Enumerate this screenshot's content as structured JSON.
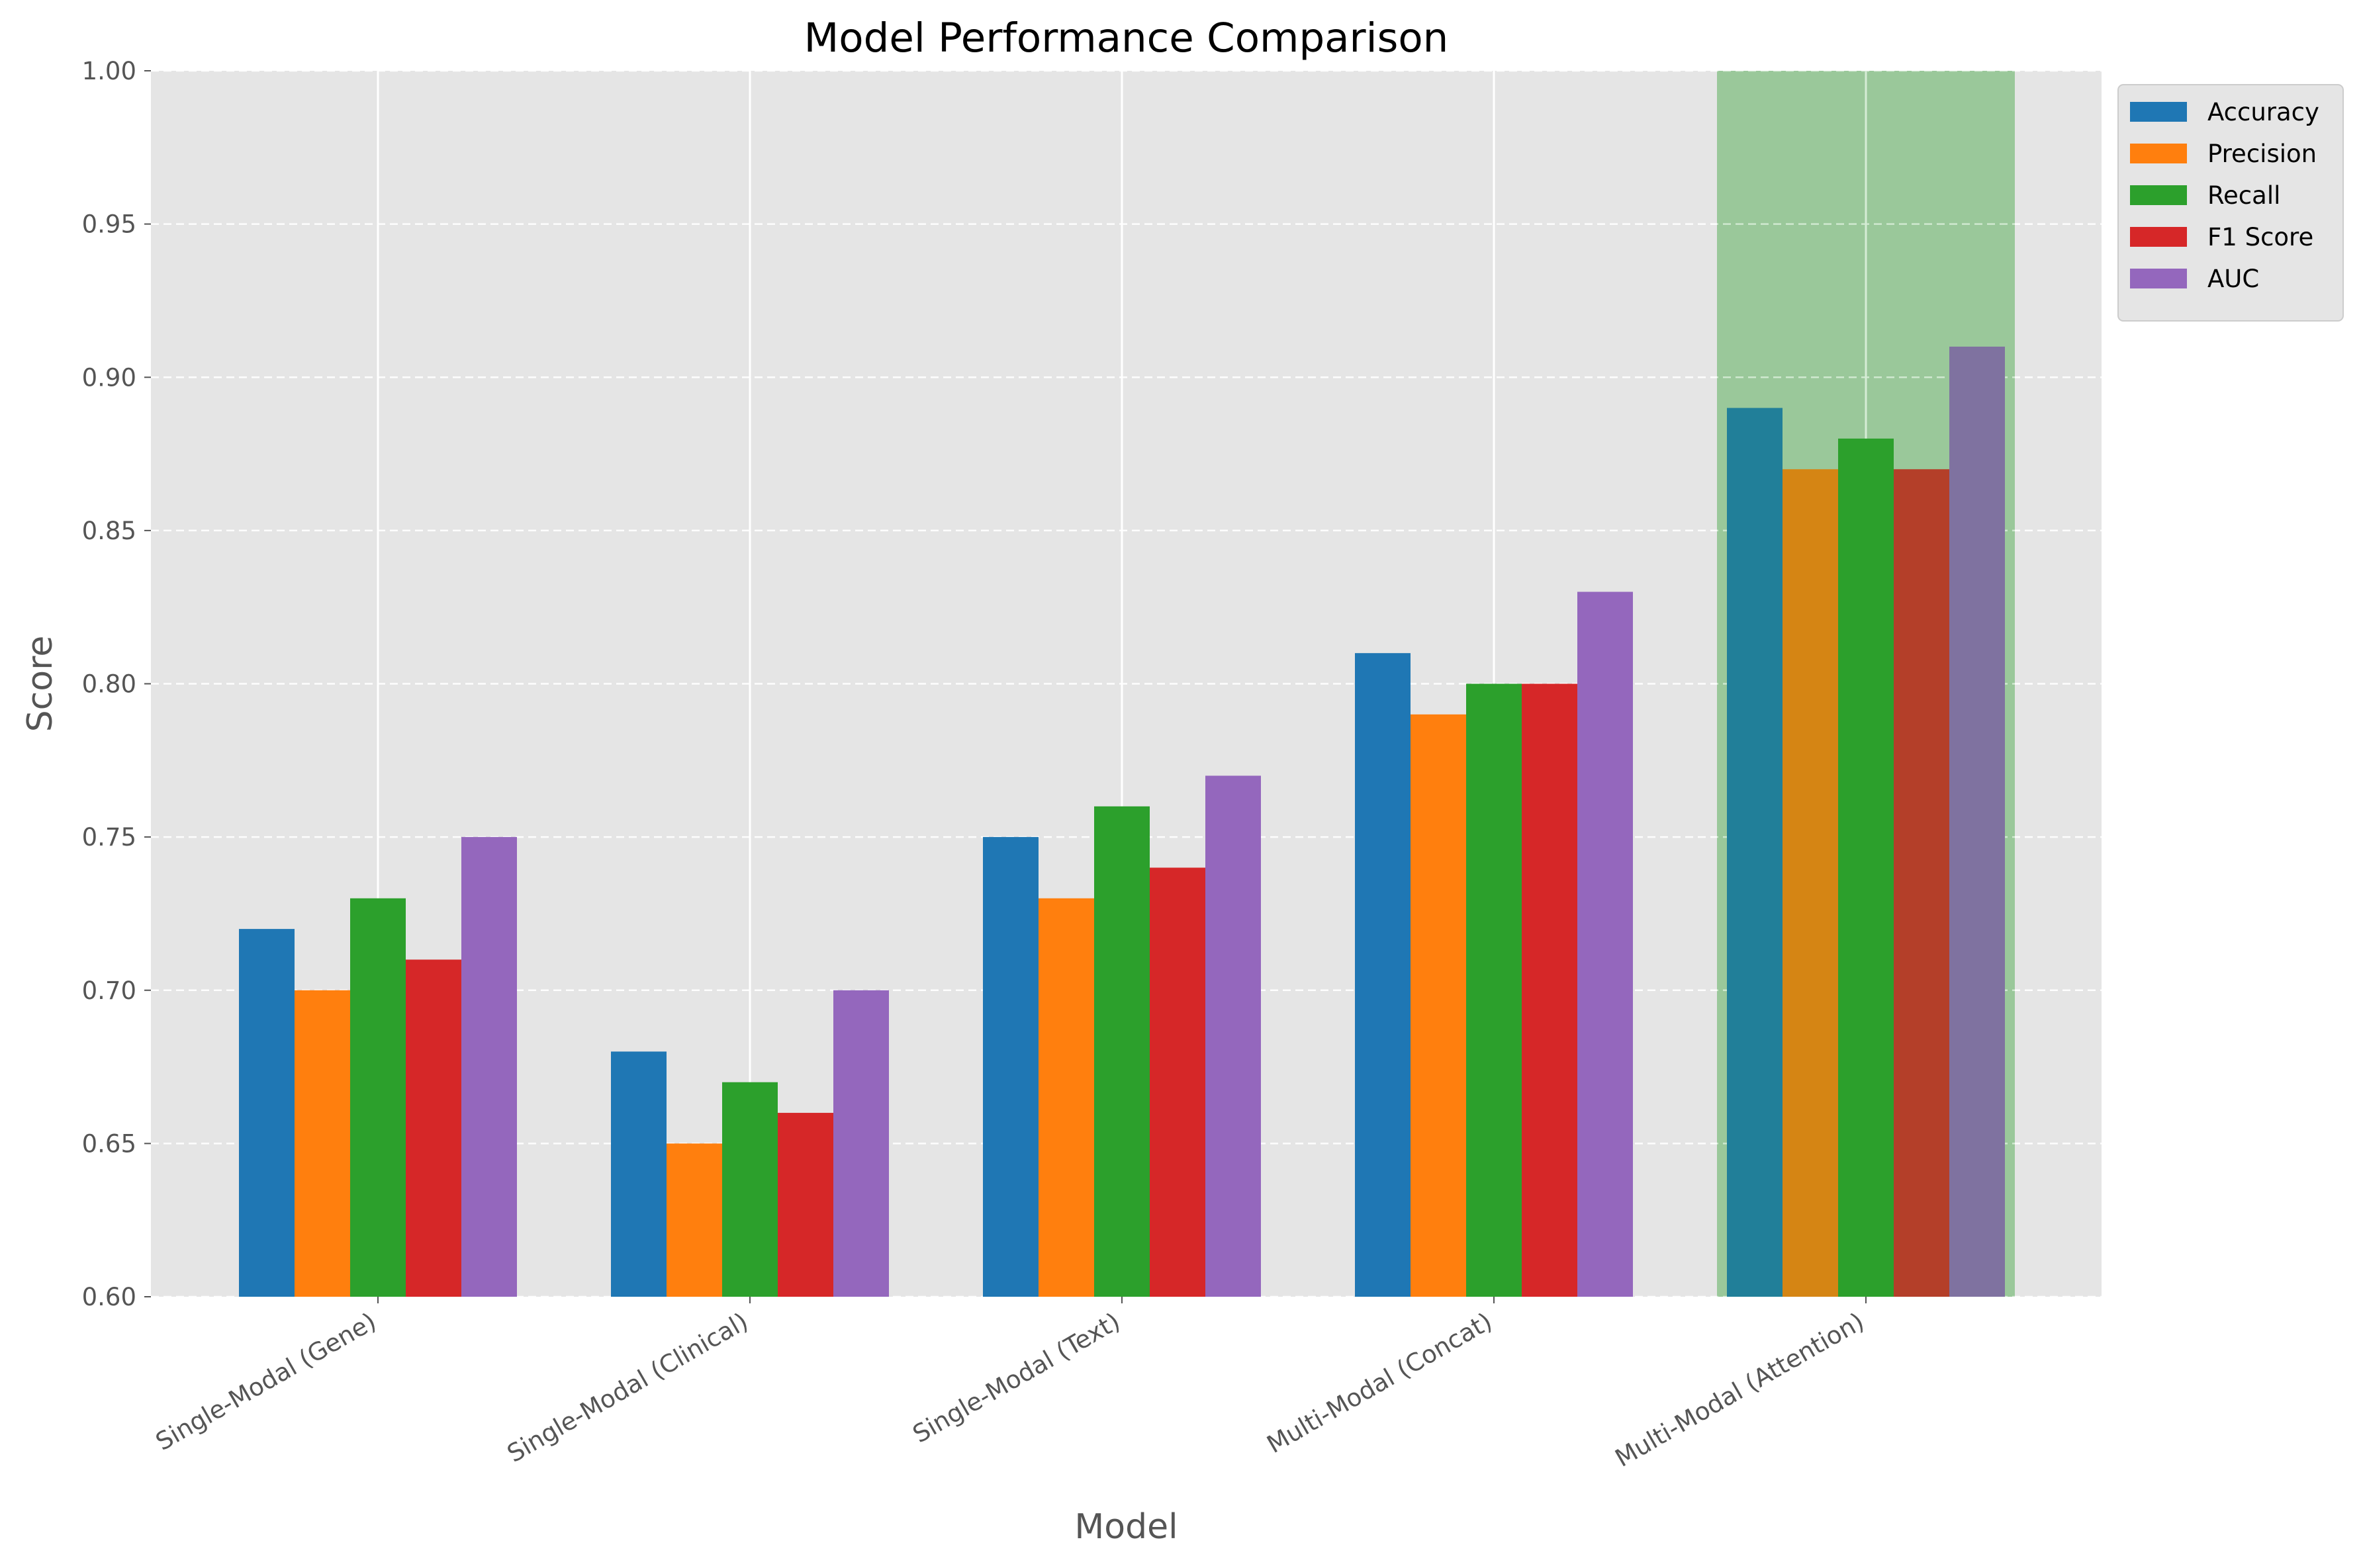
{
  "chart_data": {
    "type": "bar",
    "title": "Model Performance Comparison",
    "xlabel": "Model",
    "ylabel": "Score",
    "categories": [
      "Single-Modal (Gene)",
      "Single-Modal (Clinical)",
      "Single-Modal (Text)",
      "Multi-Modal (Concat)",
      "Multi-Modal (Attention)"
    ],
    "series": [
      {
        "name": "Accuracy",
        "color": "#1f77b4",
        "values": [
          0.72,
          0.68,
          0.75,
          0.81,
          0.89
        ]
      },
      {
        "name": "Precision",
        "color": "#ff7f0e",
        "values": [
          0.7,
          0.65,
          0.73,
          0.79,
          0.87
        ]
      },
      {
        "name": "Recall",
        "color": "#2ca02c",
        "values": [
          0.73,
          0.67,
          0.76,
          0.8,
          0.88
        ]
      },
      {
        "name": "F1 Score",
        "color": "#d62728",
        "values": [
          0.71,
          0.66,
          0.74,
          0.8,
          0.87
        ]
      },
      {
        "name": "AUC",
        "color": "#9467bd",
        "values": [
          0.75,
          0.7,
          0.77,
          0.83,
          0.91
        ]
      }
    ],
    "ylim": [
      0.6,
      1.0
    ],
    "yticks": [
      "0.60",
      "0.65",
      "0.70",
      "0.75",
      "0.80",
      "0.85",
      "0.90",
      "0.95",
      "1.00"
    ],
    "grid": true,
    "highlighted_category": "Multi-Modal (Attention)",
    "highlight_color": "#2ca02c",
    "plot_background": "#e5e5e5",
    "legend_position": "outside top-right"
  }
}
